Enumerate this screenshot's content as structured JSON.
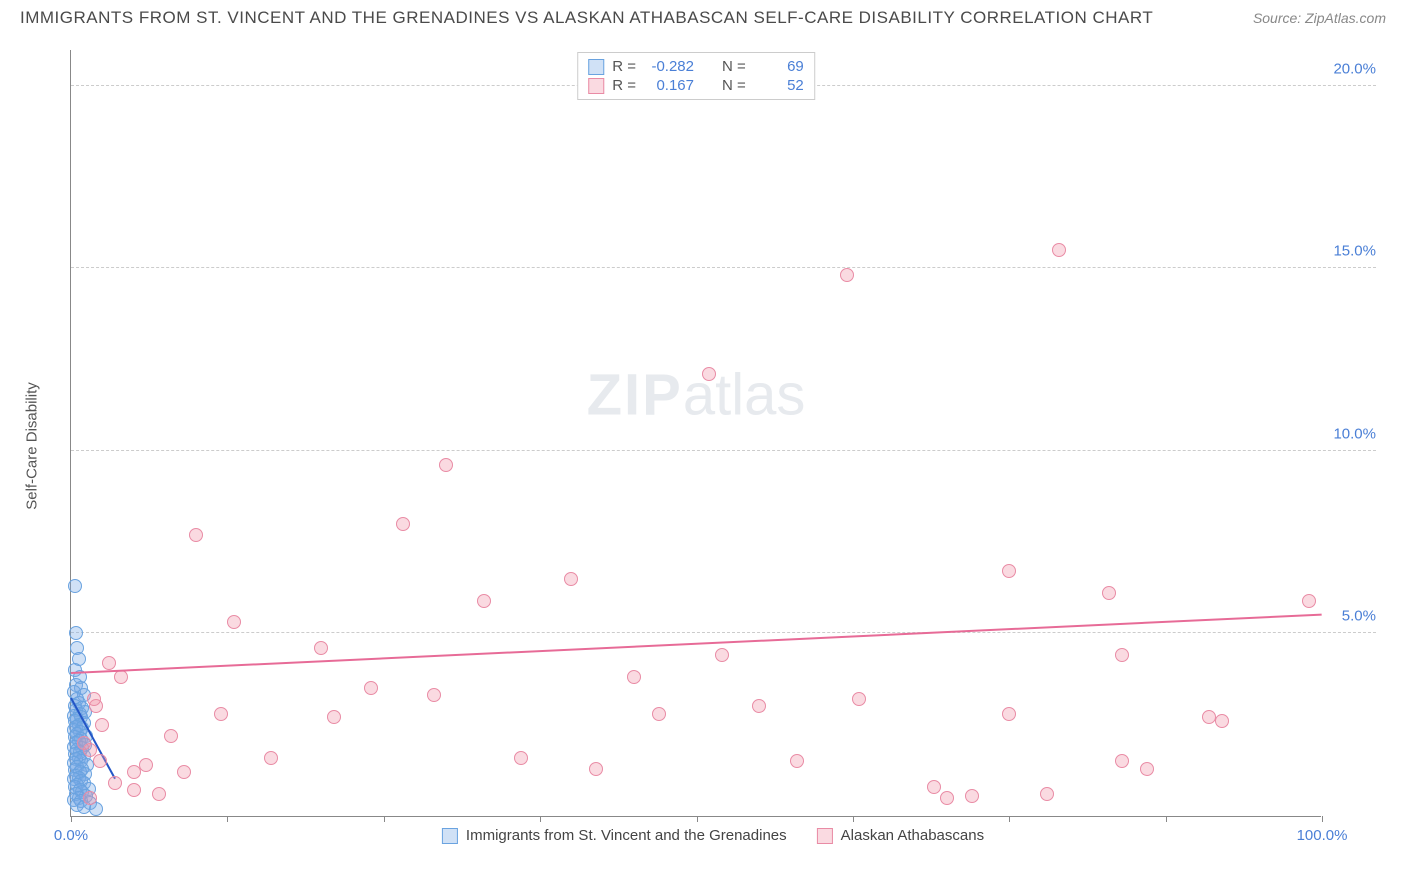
{
  "title": "IMMIGRANTS FROM ST. VINCENT AND THE GRENADINES VS ALASKAN ATHABASCAN SELF-CARE DISABILITY CORRELATION CHART",
  "source": "Source: ZipAtlas.com",
  "watermark_a": "ZIP",
  "watermark_b": "atlas",
  "ylabel": "Self-Care Disability",
  "chart": {
    "type": "scatter",
    "xlim": [
      0,
      100
    ],
    "ylim": [
      0,
      21
    ],
    "y_ticks": [
      5,
      10,
      15,
      20
    ],
    "y_tick_labels": [
      "5.0%",
      "10.0%",
      "15.0%",
      "20.0%"
    ],
    "x_ticks": [
      0,
      12.5,
      25,
      37.5,
      50,
      62.5,
      75,
      87.5,
      100
    ],
    "x_tick_labels_left": "0.0%",
    "x_tick_labels_right": "100.0%",
    "grid_color": "#cccccc",
    "axis_color": "#888888",
    "background": "#ffffff",
    "marker_radius": 7
  },
  "series": [
    {
      "name": "Immigrants from St. Vincent and the Grenadines",
      "fill": "rgba(120,170,230,0.35)",
      "stroke": "#6aa3e0",
      "line_color": "#2456c7",
      "R_label": "R =",
      "R": "-0.282",
      "N_label": "N =",
      "N": "69",
      "trend": {
        "x1": 0,
        "y1": 3.2,
        "x2": 3.5,
        "y2": 1.0
      },
      "points": [
        [
          0.3,
          6.3
        ],
        [
          0.4,
          5.0
        ],
        [
          0.5,
          4.6
        ],
        [
          0.6,
          4.3
        ],
        [
          0.3,
          4.0
        ],
        [
          0.7,
          3.8
        ],
        [
          0.4,
          3.6
        ],
        [
          0.8,
          3.5
        ],
        [
          0.2,
          3.4
        ],
        [
          1.0,
          3.3
        ],
        [
          0.5,
          3.2
        ],
        [
          0.6,
          3.1
        ],
        [
          0.3,
          3.0
        ],
        [
          0.9,
          2.95
        ],
        [
          0.4,
          2.9
        ],
        [
          1.1,
          2.85
        ],
        [
          0.7,
          2.8
        ],
        [
          0.2,
          2.75
        ],
        [
          0.8,
          2.7
        ],
        [
          0.5,
          2.65
        ],
        [
          0.3,
          2.6
        ],
        [
          1.0,
          2.55
        ],
        [
          0.6,
          2.5
        ],
        [
          0.4,
          2.45
        ],
        [
          0.9,
          2.4
        ],
        [
          0.2,
          2.35
        ],
        [
          0.7,
          2.3
        ],
        [
          0.5,
          2.25
        ],
        [
          1.2,
          2.2
        ],
        [
          0.3,
          2.15
        ],
        [
          0.8,
          2.1
        ],
        [
          0.6,
          2.05
        ],
        [
          0.4,
          2.0
        ],
        [
          1.1,
          1.95
        ],
        [
          0.2,
          1.9
        ],
        [
          0.9,
          1.85
        ],
        [
          0.5,
          1.8
        ],
        [
          0.7,
          1.75
        ],
        [
          0.3,
          1.7
        ],
        [
          1.0,
          1.65
        ],
        [
          0.6,
          1.6
        ],
        [
          0.4,
          1.55
        ],
        [
          0.8,
          1.5
        ],
        [
          0.2,
          1.45
        ],
        [
          1.3,
          1.4
        ],
        [
          0.5,
          1.35
        ],
        [
          0.9,
          1.3
        ],
        [
          0.3,
          1.25
        ],
        [
          0.7,
          1.2
        ],
        [
          1.1,
          1.15
        ],
        [
          0.4,
          1.1
        ],
        [
          0.6,
          1.05
        ],
        [
          0.2,
          1.0
        ],
        [
          0.8,
          0.95
        ],
        [
          1.0,
          0.9
        ],
        [
          0.5,
          0.85
        ],
        [
          0.3,
          0.8
        ],
        [
          1.4,
          0.75
        ],
        [
          0.7,
          0.7
        ],
        [
          0.9,
          0.65
        ],
        [
          0.4,
          0.6
        ],
        [
          1.2,
          0.55
        ],
        [
          0.6,
          0.5
        ],
        [
          0.2,
          0.45
        ],
        [
          0.8,
          0.4
        ],
        [
          1.5,
          0.35
        ],
        [
          0.5,
          0.3
        ],
        [
          1.0,
          0.25
        ],
        [
          2.0,
          0.2
        ]
      ]
    },
    {
      "name": "Alaskan Athabascans",
      "fill": "rgba(240,150,170,0.35)",
      "stroke": "#e98ba5",
      "line_color": "#e76b97",
      "R_label": "R =",
      "R": "0.167",
      "N_label": "N =",
      "N": "52",
      "trend": {
        "x1": 0,
        "y1": 3.9,
        "x2": 100,
        "y2": 5.5
      },
      "points": [
        [
          79,
          15.5
        ],
        [
          62,
          14.8
        ],
        [
          51,
          12.1
        ],
        [
          30,
          9.6
        ],
        [
          26.5,
          8.0
        ],
        [
          10,
          7.7
        ],
        [
          33,
          5.9
        ],
        [
          40,
          6.5
        ],
        [
          75,
          6.7
        ],
        [
          83,
          6.1
        ],
        [
          99,
          5.9
        ],
        [
          84,
          4.4
        ],
        [
          52,
          4.4
        ],
        [
          63,
          3.2
        ],
        [
          75,
          2.8
        ],
        [
          58,
          1.5
        ],
        [
          42,
          1.3
        ],
        [
          29,
          3.3
        ],
        [
          21,
          2.7
        ],
        [
          13,
          5.3
        ],
        [
          12,
          2.8
        ],
        [
          8,
          2.2
        ],
        [
          6,
          1.4
        ],
        [
          5,
          1.2
        ],
        [
          5,
          0.7
        ],
        [
          4,
          3.8
        ],
        [
          3,
          4.2
        ],
        [
          2.5,
          2.5
        ],
        [
          2,
          3.0
        ],
        [
          1.5,
          1.8
        ],
        [
          1.5,
          0.5
        ],
        [
          1,
          2.0
        ],
        [
          20,
          4.6
        ],
        [
          16,
          1.6
        ],
        [
          36,
          1.6
        ],
        [
          47,
          2.8
        ],
        [
          69,
          0.8
        ],
        [
          70,
          0.5
        ],
        [
          72,
          0.55
        ],
        [
          84,
          1.5
        ],
        [
          86,
          1.3
        ],
        [
          91,
          2.7
        ],
        [
          92,
          2.6
        ],
        [
          45,
          3.8
        ],
        [
          55,
          3.0
        ],
        [
          9,
          1.2
        ],
        [
          7,
          0.6
        ],
        [
          3.5,
          0.9
        ],
        [
          2.3,
          1.5
        ],
        [
          1.8,
          3.2
        ],
        [
          24,
          3.5
        ],
        [
          78,
          0.6
        ]
      ]
    }
  ],
  "legend_bottom": [
    "Immigrants from St. Vincent and the Grenadines",
    "Alaskan Athabascans"
  ]
}
